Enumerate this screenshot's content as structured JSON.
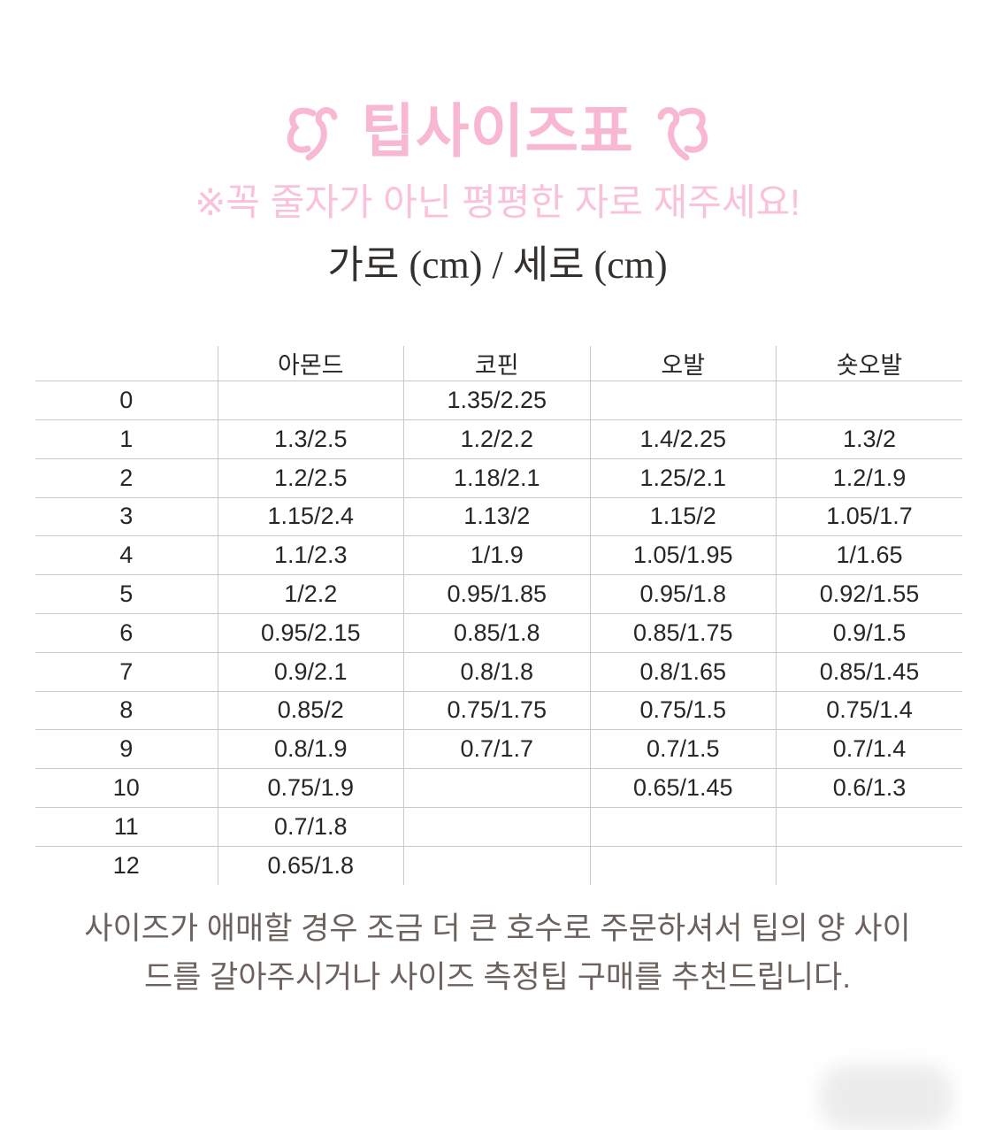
{
  "page": {
    "background": "#ffffff",
    "accent_pink": "#f8b7d3",
    "accent_pink_soft": "#f9c2da",
    "text_dark": "#34302e",
    "table_text": "#262626",
    "note_text": "#6b615d",
    "table_border": "#c9c9c9"
  },
  "header": {
    "decor_left_icon": "flourish-left-icon",
    "decor_right_icon": "flourish-right-icon",
    "title": "팁사이즈표",
    "subtitle": "※꼭 줄자가 아닌 평평한 자로 재주세요!",
    "measure_label": "가로 (cm) / 세로 (cm)"
  },
  "size_table": {
    "columns": [
      "",
      "아몬드",
      "코핀",
      "오발",
      "숏오발"
    ],
    "rows": [
      {
        "label": "0",
        "values": [
          "",
          "1.35/2.25",
          "",
          ""
        ]
      },
      {
        "label": "1",
        "values": [
          "1.3/2.5",
          "1.2/2.2",
          "1.4/2.25",
          "1.3/2"
        ]
      },
      {
        "label": "2",
        "values": [
          "1.2/2.5",
          "1.18/2.1",
          "1.25/2.1",
          "1.2/1.9"
        ]
      },
      {
        "label": "3",
        "values": [
          "1.15/2.4",
          "1.13/2",
          "1.15/2",
          "1.05/1.7"
        ]
      },
      {
        "label": "4",
        "values": [
          "1.1/2.3",
          "1/1.9",
          "1.05/1.95",
          "1/1.65"
        ]
      },
      {
        "label": "5",
        "values": [
          "1/2.2",
          "0.95/1.85",
          "0.95/1.8",
          "0.92/1.55"
        ]
      },
      {
        "label": "6",
        "values": [
          "0.95/2.15",
          "0.85/1.8",
          "0.85/1.75",
          "0.9/1.5"
        ]
      },
      {
        "label": "7",
        "values": [
          "0.9/2.1",
          "0.8/1.8",
          "0.8/1.65",
          "0.85/1.45"
        ]
      },
      {
        "label": "8",
        "values": [
          "0.85/2",
          "0.75/1.75",
          "0.75/1.5",
          "0.75/1.4"
        ]
      },
      {
        "label": "9",
        "values": [
          "0.8/1.9",
          "0.7/1.7",
          "0.7/1.5",
          "0.7/1.4"
        ]
      },
      {
        "label": "10",
        "values": [
          "0.75/1.9",
          "",
          "0.65/1.45",
          "0.6/1.3"
        ]
      },
      {
        "label": "11",
        "values": [
          "0.7/1.8",
          "",
          "",
          ""
        ]
      },
      {
        "label": "12",
        "values": [
          "0.65/1.8",
          "",
          "",
          ""
        ]
      }
    ]
  },
  "footer": {
    "note_line1": "사이즈가 애매할 경우 조금 더 큰 호수로 주문하셔서 팁의 양 사이",
    "note_line2": "드를 갈아주시거나 사이즈 측정팁 구매를 추천드립니다."
  }
}
